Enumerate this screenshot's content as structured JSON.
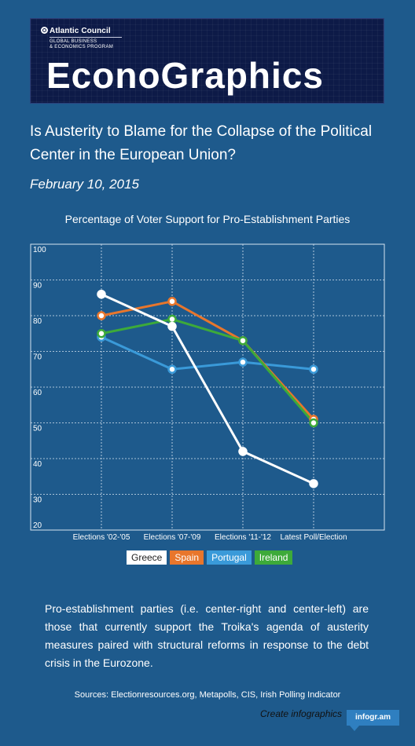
{
  "header": {
    "org_name": "Atlantic Council",
    "program_line1": "GLOBAL BUSINESS",
    "program_line2": "& ECONOMICS PROGRAM",
    "brand": "EconoGraphics"
  },
  "article": {
    "title": "Is Austerity to Blame for the Collapse of the Political Center in the European Union?",
    "date": "February 10, 2015"
  },
  "chart_data": {
    "type": "line",
    "title": "Percentage of Voter Support for Pro-Establishment Parties",
    "categories": [
      "Elections '02-'05",
      "Elections '07-'09",
      "Elections '11-'12",
      "Latest Poll/Election"
    ],
    "ylim": [
      20,
      100
    ],
    "yticks": [
      20,
      30,
      40,
      50,
      60,
      70,
      80,
      90,
      100
    ],
    "grid": true,
    "legend_position": "bottom",
    "series": [
      {
        "name": "Greece",
        "color": "#ffffff",
        "values": [
          86,
          77,
          42,
          33
        ]
      },
      {
        "name": "Spain",
        "color": "#e8762c",
        "values": [
          80,
          84,
          73,
          51
        ]
      },
      {
        "name": "Portugal",
        "color": "#3a9ad9",
        "values": [
          74,
          65,
          67,
          65
        ]
      },
      {
        "name": "Ireland",
        "color": "#3daa3a",
        "values": [
          75,
          79,
          73,
          50
        ]
      }
    ]
  },
  "legend_colors": {
    "Greece": {
      "bg": "#ffffff",
      "fg": "#222222"
    },
    "Spain": {
      "bg": "#e8762c",
      "fg": "#ffffff"
    },
    "Portugal": {
      "bg": "#3a9ad9",
      "fg": "#ffffff"
    },
    "Ireland": {
      "bg": "#3daa3a",
      "fg": "#ffffff"
    }
  },
  "description": "Pro-establishment parties (i.e. center-right and center-left) are those that currently support the Troika's agenda of austerity measures paired with structural reforms in response to the debt crisis in the Eurozone.",
  "footer": {
    "sources": "Sources:  Electionresources.org, Metapolls, CIS, Irish Polling Indicator",
    "create_link": "Create infographics",
    "badge": "infogr.am"
  }
}
